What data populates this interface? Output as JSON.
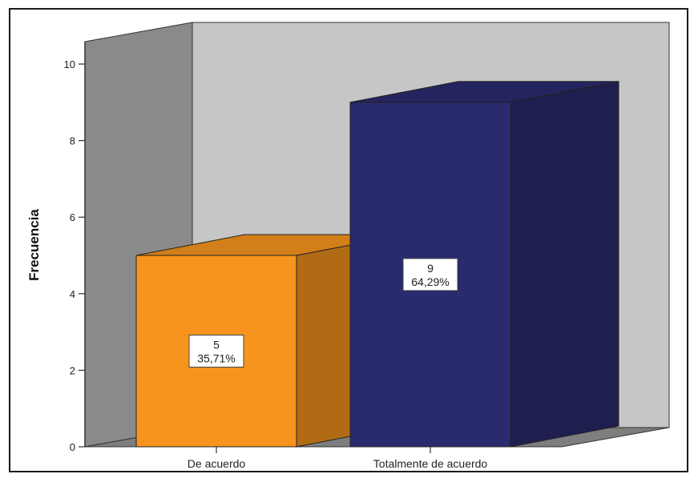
{
  "chart_data": {
    "type": "bar",
    "style": "3d",
    "ylabel": "Frecuencia",
    "xlabel": "",
    "ylim": [
      0,
      10
    ],
    "yticks": [
      0,
      2,
      4,
      6,
      8,
      10
    ],
    "categories": [
      "De acuerdo",
      "Totalmente de acuerdo"
    ],
    "values": [
      5,
      9
    ],
    "data_labels": [
      {
        "count": "5",
        "percent": "35,71%"
      },
      {
        "count": "9",
        "percent": "64,29%"
      }
    ],
    "colors": {
      "bars": [
        "#f7941d",
        "#2a2a6e"
      ],
      "back_wall": "#c6c6c6",
      "side_wall": "#8a8a8a",
      "floor": "#7e7e7e",
      "frame_border": "#1a1a1a"
    }
  }
}
